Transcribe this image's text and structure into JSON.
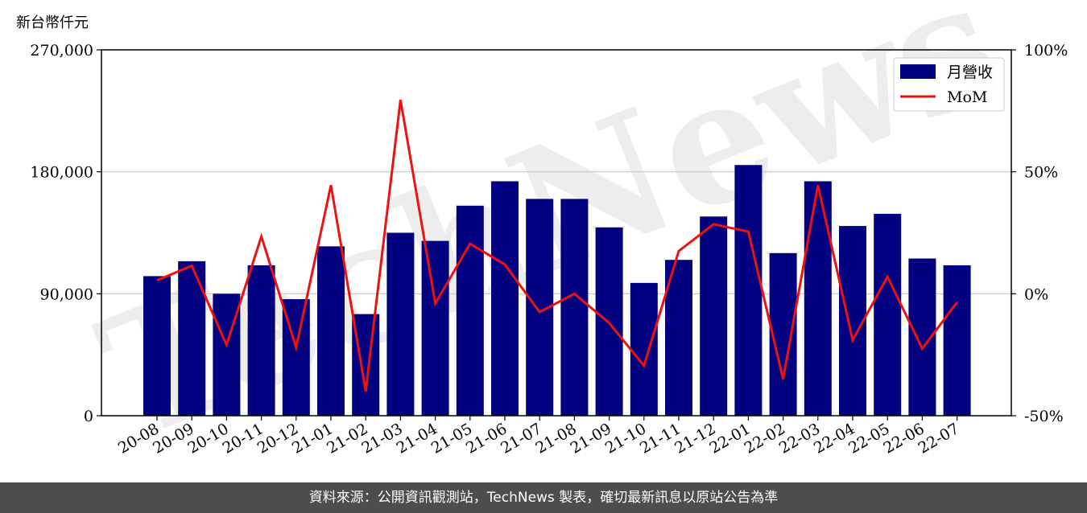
{
  "unit_label": "新台幣仟元",
  "footer_text": "資料來源：公開資訊觀測站，TechNews 製表，確切最新訊息以原站公告為準",
  "watermark": "TechNews",
  "colors": {
    "bar": "#000080",
    "line": "#ee1111",
    "grid": "#d0d0d0",
    "footer_bg": "#4d4d4d"
  },
  "chart_data": {
    "type": "bar",
    "categories": [
      "20-08",
      "20-09",
      "20-10",
      "20-11",
      "20-12",
      "21-01",
      "21-02",
      "21-03",
      "21-04",
      "21-05",
      "21-06",
      "21-07",
      "21-08",
      "21-09",
      "21-10",
      "21-11",
      "21-12",
      "22-01",
      "22-02",
      "22-03",
      "22-04",
      "22-05",
      "22-06",
      "22-07"
    ],
    "series": [
      {
        "name": "月營收",
        "type": "bar",
        "axis": "left",
        "values": [
          103000,
          114000,
          90000,
          111000,
          86000,
          125000,
          75000,
          135000,
          129000,
          155000,
          173000,
          160000,
          160000,
          139000,
          98000,
          115000,
          147000,
          185000,
          120000,
          173000,
          140000,
          149000,
          116000,
          111000
        ]
      },
      {
        "name": "MoM",
        "type": "line",
        "axis": "right",
        "values": [
          5.5,
          11.5,
          -21,
          23.5,
          -22,
          44.5,
          -40,
          79.5,
          -4,
          20.5,
          12,
          -7.5,
          0,
          -12,
          -29.5,
          17.5,
          28.5,
          25.5,
          -35,
          44.5,
          -19,
          7,
          -22.5,
          -3.5
        ]
      }
    ],
    "left_axis": {
      "ylim": [
        0,
        270000
      ],
      "ticks": [
        0,
        90000,
        180000,
        270000
      ],
      "tick_labels": [
        "0",
        "90,000",
        "180,000",
        "270,000"
      ]
    },
    "right_axis": {
      "ylim": [
        -50,
        100
      ],
      "ticks": [
        -50,
        0,
        50,
        100
      ],
      "tick_labels": [
        "-50%",
        "0%",
        "50%",
        "100%"
      ]
    },
    "grid": "horizontal",
    "legend": "top-right"
  }
}
